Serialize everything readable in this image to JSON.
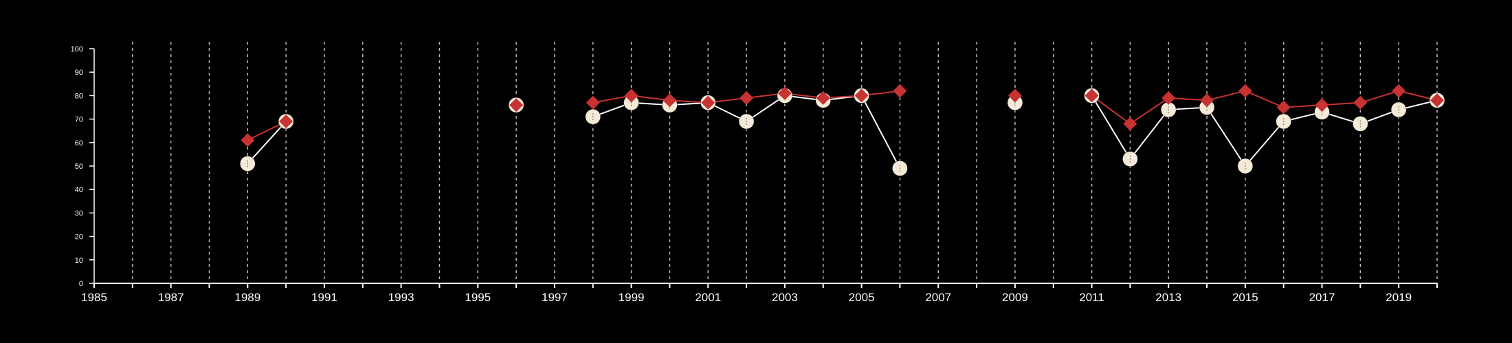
{
  "chart_data": {
    "type": "line",
    "title": "",
    "xlabel": "",
    "ylabel": "",
    "xlim": [
      1985,
      2020
    ],
    "ylim": [
      0,
      100
    ],
    "x_ticks": [
      1985,
      1987,
      1989,
      1991,
      1993,
      1995,
      1997,
      1999,
      2001,
      2003,
      2005,
      2007,
      2009,
      2011,
      2013,
      2015,
      2017,
      2019
    ],
    "y_ticks": [
      0,
      10,
      20,
      30,
      40,
      50,
      60,
      70,
      80,
      90,
      100
    ],
    "grid": {
      "vertical_dashed": true,
      "step_years": 1,
      "horizontal": false
    },
    "legend": "none",
    "colors": {
      "background": "#000000",
      "axis": "#ffffff",
      "grid": "#bbbbbb"
    },
    "series": [
      {
        "marker": "circle",
        "color": "#f5ead8",
        "line_color": "#ffffff",
        "points": [
          [
            1989,
            51
          ],
          [
            1990,
            69
          ],
          null,
          [
            1996,
            76
          ],
          null,
          [
            1998,
            71
          ],
          [
            1999,
            77
          ],
          [
            2000,
            76
          ],
          [
            2001,
            77
          ],
          [
            2002,
            69
          ],
          [
            2003,
            80
          ],
          [
            2004,
            78
          ],
          [
            2005,
            80
          ],
          [
            2006,
            49
          ],
          null,
          [
            2009,
            77
          ],
          null,
          [
            2011,
            80
          ],
          [
            2012,
            53
          ],
          [
            2013,
            74
          ],
          [
            2014,
            75
          ],
          [
            2015,
            50
          ],
          [
            2016,
            69
          ],
          [
            2017,
            73
          ],
          [
            2018,
            68
          ],
          [
            2019,
            74
          ],
          [
            2020,
            78
          ]
        ]
      },
      {
        "marker": "diamond",
        "color": "#c83232",
        "line_color": "#c83232",
        "points": [
          [
            1989,
            61
          ],
          [
            1990,
            69
          ],
          null,
          [
            1996,
            76
          ],
          null,
          [
            1998,
            77
          ],
          [
            1999,
            80
          ],
          [
            2000,
            78
          ],
          [
            2001,
            77
          ],
          [
            2002,
            79
          ],
          [
            2003,
            81
          ],
          [
            2004,
            79
          ],
          [
            2005,
            80
          ],
          [
            2006,
            82
          ],
          null,
          [
            2009,
            80
          ],
          null,
          [
            2011,
            80
          ],
          [
            2012,
            68
          ],
          [
            2013,
            79
          ],
          [
            2014,
            78
          ],
          [
            2015,
            82
          ],
          [
            2016,
            75
          ],
          [
            2017,
            76
          ],
          [
            2018,
            77
          ],
          [
            2019,
            82
          ],
          [
            2020,
            78
          ]
        ]
      }
    ]
  }
}
